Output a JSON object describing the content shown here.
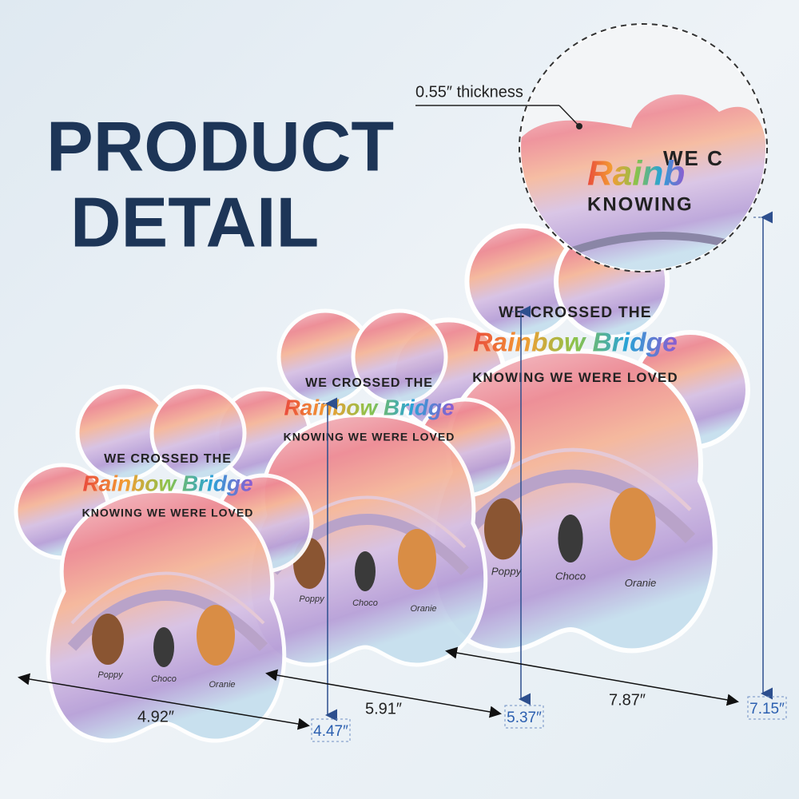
{
  "header": {
    "title_lines": [
      "PRODUCT",
      "DETAIL"
    ]
  },
  "callout": {
    "label": "0.55″ thickness",
    "zoom_lines": [
      "WE C",
      "Rainb",
      "KNOWING"
    ]
  },
  "plaques": [
    {
      "width_label": "4.92″",
      "height_label": "4.47″",
      "lines": [
        "WE CROSSED THE",
        "Rainbow Bridge",
        "KNOWING WE WERE LOVED"
      ],
      "names": [
        "Poppy",
        "Choco",
        "Oranie"
      ]
    },
    {
      "width_label": "5.91″",
      "height_label": "5.37″",
      "lines": [
        "WE CROSSED THE",
        "Rainbow Bridge",
        "KNOWING WE WERE LOVED"
      ],
      "names": [
        "Poppy",
        "Choco",
        "Oranie"
      ]
    },
    {
      "width_label": "7.87″",
      "height_label": "7.15″",
      "lines": [
        "WE CROSSED THE",
        "Rainbow Bridge",
        "KNOWING WE WERE LOVED"
      ],
      "names": [
        "Poppy",
        "Choco",
        "Oranie"
      ]
    }
  ]
}
